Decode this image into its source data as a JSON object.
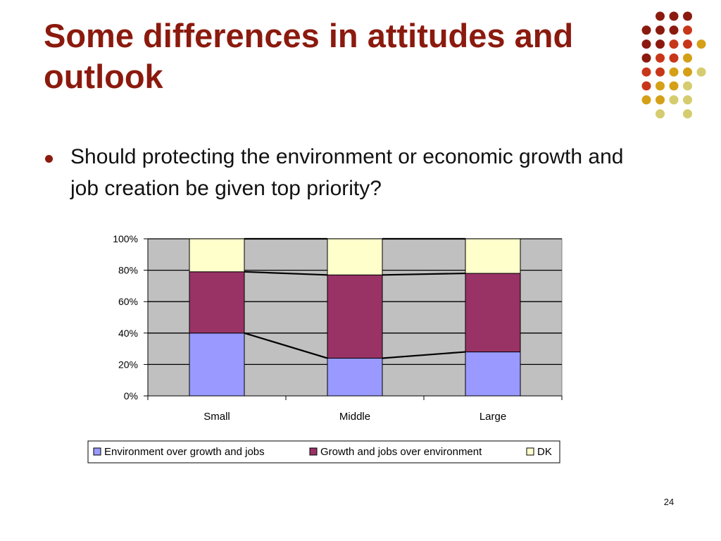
{
  "slide": {
    "title": "Some differences in attitudes and outlook",
    "bullet": "Should protecting the environment or economic growth and job creation be given top priority?",
    "page_number": "24"
  },
  "colors": {
    "title": "#8B1A0E",
    "plot_background": "#C0C0C0",
    "dots": [
      "#8B1A0E",
      "#C8361A",
      "#D4A017",
      "#D4CC6E"
    ]
  },
  "chart_data": {
    "type": "bar",
    "stacked": true,
    "categories": [
      "Small",
      "Middle",
      "Large"
    ],
    "series": [
      {
        "name": "Environment over growth and jobs",
        "color": "#9999FF",
        "values": [
          40,
          24,
          28
        ]
      },
      {
        "name": "Growth and jobs over environment",
        "color": "#993366",
        "values": [
          39,
          53,
          50
        ]
      },
      {
        "name": "DK",
        "color": "#FFFFCC",
        "values": [
          21,
          23,
          22
        ]
      }
    ],
    "ylim": [
      0,
      100
    ],
    "yticks": [
      "0%",
      "20%",
      "40%",
      "60%",
      "80%",
      "100%"
    ],
    "series_lines": true,
    "grid": true,
    "legend_position": "bottom",
    "title": "",
    "xlabel": "",
    "ylabel": ""
  }
}
